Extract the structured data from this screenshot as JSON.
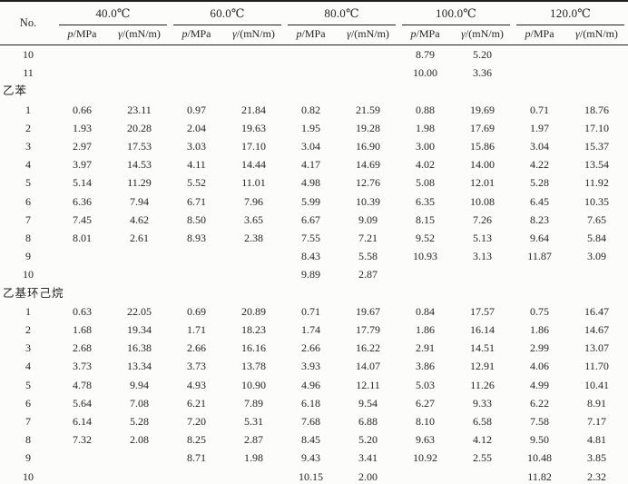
{
  "table": {
    "no_label": "No.",
    "pressure_symbol": "p",
    "pressure_unit": "/MPa",
    "gamma_symbol": "γ",
    "gamma_unit": "/(mN/m)",
    "temperatures": [
      "40.0℃",
      "60.0℃",
      "80.0℃",
      "100.0℃",
      "120.0℃"
    ],
    "rows": [
      {
        "no": "10",
        "cells": [
          "",
          "",
          "",
          "",
          "",
          "",
          "8.79",
          "5.20",
          "",
          ""
        ]
      },
      {
        "no": "11",
        "cells": [
          "",
          "",
          "",
          "",
          "",
          "",
          "10.00",
          "3.36",
          "",
          ""
        ]
      },
      {
        "section": "乙苯"
      },
      {
        "no": "1",
        "cells": [
          "0.66",
          "23.11",
          "0.97",
          "21.84",
          "0.82",
          "21.59",
          "0.88",
          "19.69",
          "0.71",
          "18.76"
        ]
      },
      {
        "no": "2",
        "cells": [
          "1.93",
          "20.28",
          "2.04",
          "19.63",
          "1.95",
          "19.28",
          "1.98",
          "17.69",
          "1.97",
          "17.10"
        ]
      },
      {
        "no": "3",
        "cells": [
          "2.97",
          "17.53",
          "3.03",
          "17.10",
          "3.04",
          "16.90",
          "3.00",
          "15.86",
          "3.04",
          "15.37"
        ]
      },
      {
        "no": "4",
        "cells": [
          "3.97",
          "14.53",
          "4.11",
          "14.44",
          "4.17",
          "14.69",
          "4.02",
          "14.00",
          "4.22",
          "13.54"
        ]
      },
      {
        "no": "5",
        "cells": [
          "5.14",
          "11.29",
          "5.52",
          "11.01",
          "4.98",
          "12.76",
          "5.08",
          "12.01",
          "5.28",
          "11.92"
        ]
      },
      {
        "no": "6",
        "cells": [
          "6.36",
          "7.94",
          "6.71",
          "7.96",
          "5.99",
          "10.39",
          "6.35",
          "10.08",
          "6.45",
          "10.35"
        ]
      },
      {
        "no": "7",
        "cells": [
          "7.45",
          "4.62",
          "8.50",
          "3.65",
          "6.67",
          "9.09",
          "8.15",
          "7.26",
          "8.23",
          "7.65"
        ]
      },
      {
        "no": "8",
        "cells": [
          "8.01",
          "2.61",
          "8.93",
          "2.38",
          "7.55",
          "7.21",
          "9.52",
          "5.13",
          "9.64",
          "5.84"
        ]
      },
      {
        "no": "9",
        "cells": [
          "",
          "",
          "",
          "",
          "8.43",
          "5.58",
          "10.93",
          "3.13",
          "11.87",
          "3.09"
        ]
      },
      {
        "no": "10",
        "cells": [
          "",
          "",
          "",
          "",
          "9.89",
          "2.87",
          "",
          "",
          "",
          ""
        ]
      },
      {
        "section": "乙基环己烷"
      },
      {
        "no": "1",
        "cells": [
          "0.63",
          "22.05",
          "0.69",
          "20.89",
          "0.71",
          "19.67",
          "0.84",
          "17.57",
          "0.75",
          "16.47"
        ]
      },
      {
        "no": "2",
        "cells": [
          "1.68",
          "19.34",
          "1.71",
          "18.23",
          "1.74",
          "17.79",
          "1.86",
          "16.14",
          "1.86",
          "14.67"
        ]
      },
      {
        "no": "3",
        "cells": [
          "2.68",
          "16.38",
          "2.66",
          "16.16",
          "2.66",
          "16.22",
          "2.91",
          "14.51",
          "2.99",
          "13.07"
        ]
      },
      {
        "no": "4",
        "cells": [
          "3.73",
          "13.34",
          "3.73",
          "13.78",
          "3.93",
          "14.07",
          "3.86",
          "12.91",
          "4.06",
          "11.70"
        ]
      },
      {
        "no": "5",
        "cells": [
          "4.78",
          "9.94",
          "4.93",
          "10.90",
          "4.96",
          "12.11",
          "5.03",
          "11.26",
          "4.99",
          "10.41"
        ]
      },
      {
        "no": "6",
        "cells": [
          "5.64",
          "7.08",
          "6.21",
          "7.89",
          "6.18",
          "9.54",
          "6.27",
          "9.33",
          "6.22",
          "8.91"
        ]
      },
      {
        "no": "7",
        "cells": [
          "6.14",
          "5.28",
          "7.20",
          "5.31",
          "7.68",
          "6.88",
          "8.10",
          "6.58",
          "7.58",
          "7.17"
        ]
      },
      {
        "no": "8",
        "cells": [
          "7.32",
          "2.08",
          "8.25",
          "2.87",
          "8.45",
          "5.20",
          "9.63",
          "4.12",
          "9.50",
          "4.81"
        ]
      },
      {
        "no": "9",
        "cells": [
          "",
          "",
          "8.71",
          "1.98",
          "9.43",
          "3.41",
          "10.92",
          "2.55",
          "10.48",
          "3.85"
        ]
      },
      {
        "no": "10",
        "cells": [
          "",
          "",
          "",
          "",
          "10.15",
          "2.00",
          "",
          "",
          "11.82",
          "2.32"
        ]
      }
    ]
  },
  "colors": {
    "background": "#fcfcfb",
    "text": "#242424",
    "border": "#1f1f1f",
    "border_light": "#5a5752"
  }
}
